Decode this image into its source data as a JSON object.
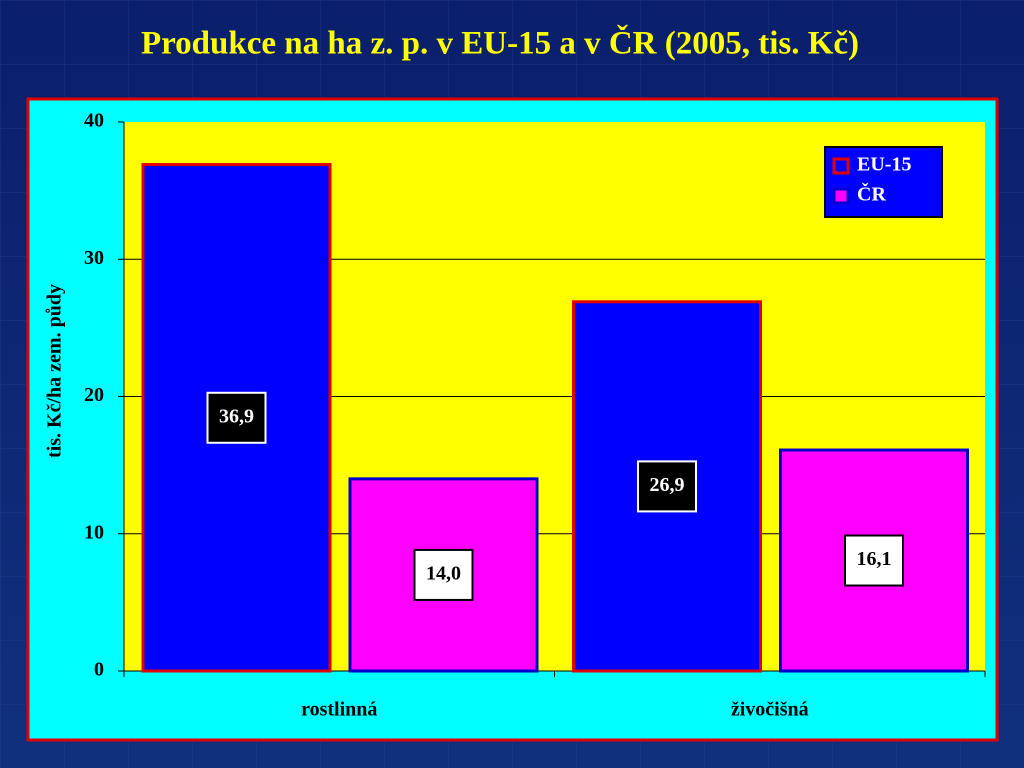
{
  "chart_data": {
    "type": "bar",
    "title": "Produkce na ha z. p. v EU-15 a v ČR (2005, tis. Kč)",
    "y_label": "tis. Kč/ha zem. půdy",
    "categories": [
      "rostlinná",
      "živočišná"
    ],
    "series": [
      {
        "name": "EU-15",
        "color": "#0000ff",
        "values": [
          36.9,
          26.9
        ],
        "value_labels": [
          "36,9",
          "26,9"
        ]
      },
      {
        "name": "ČR",
        "color": "#ff00ff",
        "values": [
          14.0,
          16.1
        ],
        "value_labels": [
          "14,0",
          "16,1"
        ]
      }
    ],
    "ylim": [
      0,
      40
    ],
    "yticks": [
      0,
      10,
      20,
      30,
      40
    ],
    "grid": true,
    "legend": "upper right"
  }
}
